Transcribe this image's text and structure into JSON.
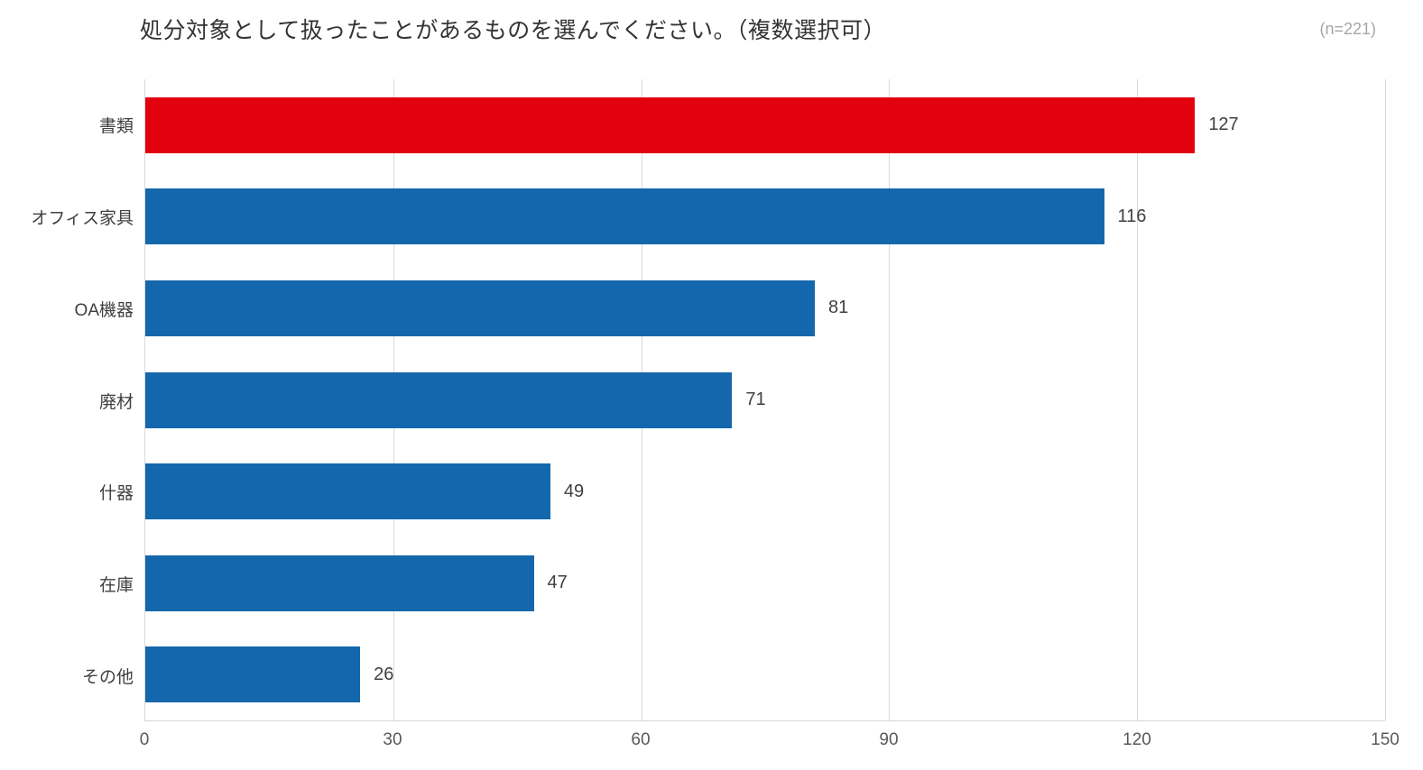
{
  "chart_data": {
    "type": "bar",
    "orientation": "horizontal",
    "title": "処分対象として扱ったことがあるものを選んでください。（複数選択可）",
    "sample_label": "(n=221)",
    "categories": [
      "書類",
      "オフィス家具",
      "OA機器",
      "廃材",
      "什器",
      "在庫",
      "その他"
    ],
    "values": [
      127,
      116,
      81,
      71,
      49,
      47,
      26
    ],
    "bar_colors": [
      "#e3000f",
      "#1467ac",
      "#1467ac",
      "#1467ac",
      "#1467ac",
      "#1467ac",
      "#1467ac"
    ],
    "x_ticks": [
      0,
      30,
      60,
      90,
      120,
      150
    ],
    "xlim": [
      0,
      150
    ],
    "xlabel": "",
    "ylabel": "",
    "grid": true,
    "gridline_color": "#d9d9d9",
    "value_labels": true,
    "legend": "none"
  }
}
